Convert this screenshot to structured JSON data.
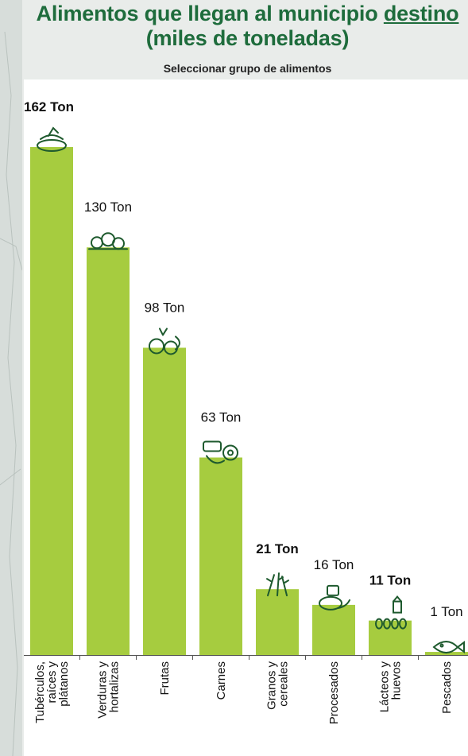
{
  "header": {
    "title_part1": "Alimentos que llegan al municipio",
    "title_link": "destino",
    "title_line2": "(miles de toneladas)",
    "selector_label": "Seleccionar grupo de alimentos"
  },
  "colors": {
    "bar": "#a6cc3f",
    "title": "#1e6c3c",
    "icon_stroke": "#1e5a2e"
  },
  "chart_data": {
    "type": "bar",
    "categories": [
      [
        "Tubérculos,",
        "raíces y",
        "plátanos"
      ],
      [
        "Verduras y",
        "hortalizas"
      ],
      [
        "Frutas"
      ],
      [
        "Carnes"
      ],
      [
        "Granos y",
        "cereales"
      ],
      [
        "Procesados"
      ],
      [
        "Lácteos y",
        "huevos"
      ],
      [
        "Pescados"
      ]
    ],
    "values": [
      162,
      130,
      98,
      63,
      21,
      16,
      11,
      1
    ],
    "value_labels": [
      "162 Ton",
      "130 Ton",
      "98 Ton",
      "63 Ton",
      "21 Ton",
      "16 Ton",
      "11 Ton",
      "1 Ton"
    ],
    "icons": [
      "tuber-icon",
      "vegetables-icon",
      "fruits-icon",
      "meat-icon",
      "grains-icon",
      "processed-icon",
      "dairy-eggs-icon",
      "fish-icon"
    ],
    "bold_labels": [
      true,
      false,
      false,
      false,
      true,
      false,
      true,
      false
    ],
    "ylim": [
      0,
      162
    ]
  }
}
